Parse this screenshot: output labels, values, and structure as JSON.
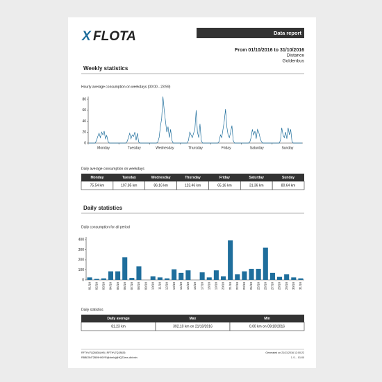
{
  "header": {
    "logo_mark": "X",
    "logo_text": "FLOTA",
    "report_title": "Data report",
    "period": "From 01/10/2016 to 31/10/2016",
    "metric": "Distance",
    "group": "Goldenbus"
  },
  "weekly": {
    "heading": "Weekly statistics",
    "table": {
      "caption": "Daily average consumption on weekdays",
      "columns": [
        "Monday",
        "Tuesday",
        "Wednesday",
        "Thursday",
        "Friday",
        "Saturday",
        "Sunday"
      ],
      "rows": [
        [
          "75.54 km",
          "197.85 km",
          "86.16 km",
          "123.46 km",
          "65.16 km",
          "31.36 km",
          "80.64 km"
        ]
      ]
    }
  },
  "daily": {
    "heading": "Daily statistics",
    "table": {
      "caption": "Daily statistics",
      "columns": [
        "Daily average",
        "Max",
        "Min"
      ],
      "rows": [
        [
          "81.23 km",
          "392.10 km on 21/10/2016",
          "0.00 km on 09/10/2016"
        ]
      ]
    }
  },
  "chart_data": [
    {
      "type": "line",
      "title": "Hourly average consumption on weekdays (00:00 - 23:59)",
      "day_labels": [
        "Monday",
        "Tuesday",
        "Wednesday",
        "Thursday",
        "Friday",
        "Saturday",
        "Sunday"
      ],
      "color": "#1f6e9c",
      "ylim": [
        0,
        80
      ],
      "yticks": [
        0,
        20,
        40,
        60,
        80
      ],
      "values": [
        0,
        0,
        0,
        0,
        0,
        0,
        5,
        12,
        18,
        10,
        20,
        15,
        22,
        8,
        14,
        3,
        0,
        0,
        0,
        0,
        0,
        0,
        0,
        0,
        0,
        0,
        0,
        0,
        0,
        0,
        3,
        10,
        18,
        8,
        15,
        12,
        20,
        5,
        18,
        2,
        0,
        0,
        0,
        0,
        0,
        0,
        0,
        0,
        0,
        0,
        0,
        0,
        0,
        0,
        2,
        10,
        30,
        45,
        85,
        60,
        40,
        20,
        30,
        10,
        25,
        5,
        0,
        0,
        0,
        0,
        0,
        0,
        0,
        0,
        0,
        0,
        0,
        0,
        5,
        20,
        15,
        10,
        18,
        25,
        60,
        20,
        10,
        35,
        5,
        0,
        0,
        0,
        0,
        0,
        0,
        0,
        0,
        0,
        0,
        0,
        0,
        0,
        3,
        15,
        10,
        25,
        40,
        62,
        30,
        15,
        10,
        20,
        32,
        5,
        0,
        0,
        0,
        0,
        0,
        0,
        0,
        0,
        0,
        0,
        0,
        0,
        2,
        10,
        25,
        15,
        22,
        8,
        25,
        20,
        10,
        3,
        0,
        0,
        0,
        0,
        0,
        0,
        0,
        0,
        0,
        0,
        0,
        0,
        0,
        0,
        5,
        28,
        15,
        10,
        20,
        8,
        28,
        15,
        25,
        3,
        0,
        0,
        0,
        0,
        0,
        0,
        0,
        0
      ]
    },
    {
      "type": "bar",
      "title": "Daily consumption for all period",
      "color": "#1f6e9c",
      "ylim": [
        0,
        400
      ],
      "yticks": [
        0,
        100,
        200,
        300,
        400
      ],
      "categories": [
        "01/10",
        "02/10",
        "03/10",
        "04/10",
        "05/10",
        "06/10",
        "07/10",
        "08/10",
        "09/10",
        "10/10",
        "11/10",
        "12/10",
        "13/10",
        "14/10",
        "15/10",
        "16/10",
        "17/10",
        "18/10",
        "19/10",
        "20/10",
        "21/10",
        "22/10",
        "23/10",
        "24/10",
        "25/10",
        "26/10",
        "27/10",
        "28/10",
        "29/10",
        "30/10",
        "31/10"
      ],
      "values": [
        25,
        10,
        15,
        85,
        85,
        225,
        20,
        135,
        0,
        35,
        25,
        15,
        105,
        70,
        95,
        0,
        75,
        25,
        95,
        35,
        392,
        55,
        85,
        110,
        110,
        320,
        70,
        30,
        55,
        25,
        15
      ]
    }
  ],
  "footer": {
    "left": [
      "RFTHV7Q28836LHB | RFTHV7Q28836",
      "RBBD5NT2B59H90YR@xbeloj@9Q23exs.dbt.min"
    ],
    "right": [
      "Generated on 21/11/2016 12:00:22",
      "1 / 1 - 01:00"
    ]
  }
}
